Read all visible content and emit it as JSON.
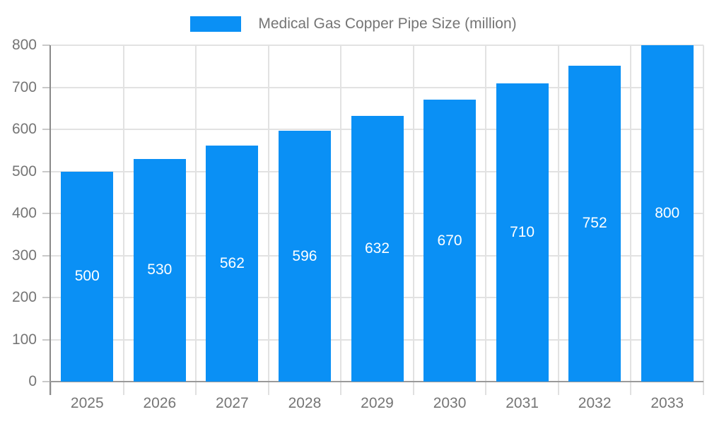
{
  "legend": {
    "label": "Medical Gas Copper Pipe Size (million)"
  },
  "colors": {
    "bar": "#0a90f5",
    "grid": "#e2e2e2",
    "axis_y": "#8a8a8a",
    "axis_x": "#9a9a9a",
    "y_tick": "#c9c9c9",
    "boundary_tick": "#e0e0e0",
    "label_text": "#757575",
    "bar_label_text": "#ffffff"
  },
  "chart_data": {
    "type": "bar",
    "title": "Medical Gas Copper Pipe Size (million)",
    "categories": [
      "2025",
      "2026",
      "2027",
      "2028",
      "2029",
      "2030",
      "2031",
      "2032",
      "2033"
    ],
    "values": [
      500,
      530,
      562,
      596,
      632,
      670,
      710,
      752,
      800
    ],
    "xlabel": "",
    "ylabel": "",
    "ylim": [
      0,
      800
    ],
    "yticks": [
      0,
      100,
      200,
      300,
      400,
      500,
      600,
      700,
      800
    ],
    "grid": true,
    "legend_position": "top",
    "value_labels": "inside-center"
  }
}
